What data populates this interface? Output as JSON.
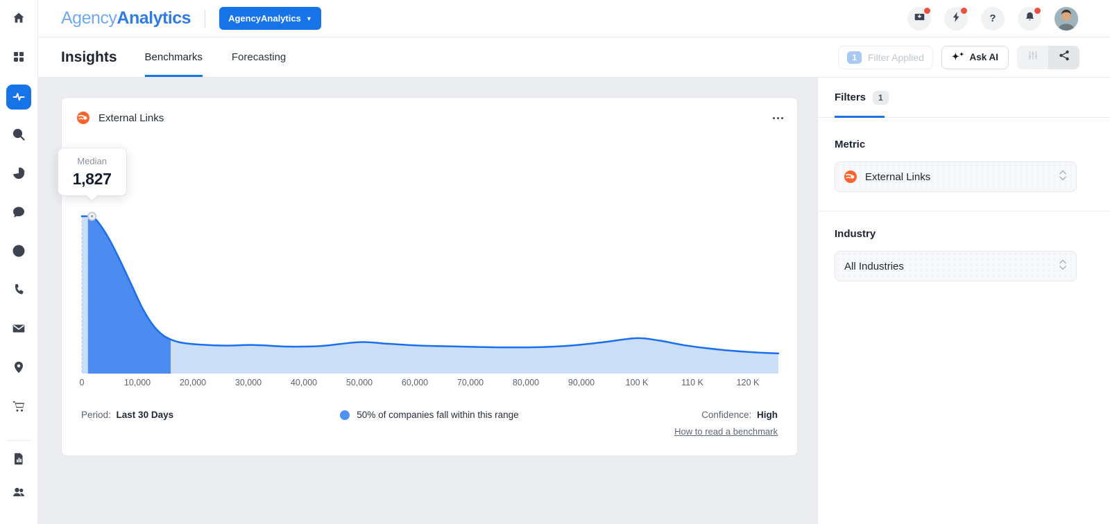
{
  "header": {
    "logo_part1": "Agency",
    "logo_part2": "Analytics",
    "account_button_label": "AgencyAnalytics",
    "help_icon_glyph": "?"
  },
  "tabbar": {
    "title": "Insights",
    "tabs": [
      {
        "label": "Benchmarks",
        "active": true
      },
      {
        "label": "Forecasting",
        "active": false
      }
    ],
    "filter_chip": {
      "count": "1",
      "label": "Filter Applied"
    },
    "ask_ai_label": "Ask AI"
  },
  "sidebar": {
    "items": [
      "home-icon",
      "apps-grid-icon",
      "insights-pulse-icon",
      "search-icon",
      "pie-chart-icon",
      "chat-icon",
      "rank-tracking-icon",
      "phone-icon",
      "email-icon",
      "location-pin-icon",
      "cart-icon",
      "report-icon",
      "users-icon"
    ],
    "active_item": "insights-pulse-icon"
  },
  "card": {
    "title": "External Links",
    "source_icon": "semrush-icon",
    "footer": {
      "period_label": "Period:",
      "period_value": "Last 30 Days",
      "legend_text": "50% of companies fall within this range",
      "confidence_label": "Confidence:",
      "confidence_value": "High",
      "link_text": "How to read a benchmark"
    }
  },
  "filters_panel": {
    "tab_label": "Filters",
    "badge": "1",
    "metric_label": "Metric",
    "metric_value": "External Links",
    "industry_label": "Industry",
    "industry_value": "All Industries"
  },
  "chart_data": {
    "type": "area",
    "title": "External Links benchmark distribution",
    "median": 1827,
    "median_label": "Median",
    "median_display": "1,827",
    "highlight_range": [
      1100,
      16000
    ],
    "highlight_meaning": "50% of companies fall within this range",
    "x_tick_labels": [
      "0",
      "10,000",
      "20,000",
      "30,000",
      "40,000",
      "50,000",
      "60,000",
      "70,000",
      "80,000",
      "90,000",
      "100 K",
      "110 K",
      "120 K"
    ],
    "x_tick_values": [
      0,
      10000,
      20000,
      30000,
      40000,
      50000,
      60000,
      70000,
      80000,
      90000,
      100000,
      110000,
      120000
    ],
    "x_max": 125500,
    "curve": [
      [
        0,
        1.0
      ],
      [
        1900,
        0.995
      ],
      [
        3200,
        0.95
      ],
      [
        5000,
        0.85
      ],
      [
        7000,
        0.71
      ],
      [
        9000,
        0.56
      ],
      [
        11000,
        0.41
      ],
      [
        13000,
        0.3
      ],
      [
        15000,
        0.235
      ],
      [
        17500,
        0.2
      ],
      [
        21000,
        0.185
      ],
      [
        26000,
        0.178
      ],
      [
        31000,
        0.182
      ],
      [
        37000,
        0.172
      ],
      [
        43000,
        0.175
      ],
      [
        50000,
        0.2
      ],
      [
        55000,
        0.19
      ],
      [
        61000,
        0.178
      ],
      [
        68000,
        0.172
      ],
      [
        75000,
        0.167
      ],
      [
        82000,
        0.168
      ],
      [
        88000,
        0.178
      ],
      [
        94000,
        0.2
      ],
      [
        100000,
        0.225
      ],
      [
        104000,
        0.21
      ],
      [
        109000,
        0.178
      ],
      [
        115000,
        0.152
      ],
      [
        120000,
        0.138
      ],
      [
        125500,
        0.128
      ]
    ],
    "colors": {
      "line": "#1a6ff0",
      "area_light": "#cbdef8",
      "area_dark": "#4c8cf0",
      "legend_dot": "#4f90f1",
      "dashed_edge": "#bcd4f6"
    },
    "grid": false,
    "legend_position": "bottom"
  }
}
